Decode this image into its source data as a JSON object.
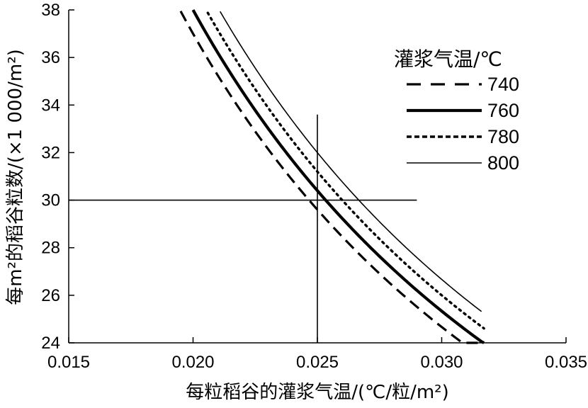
{
  "chart_data": {
    "type": "line",
    "xlabel": "每粒稻谷的灌浆气温/(℃/粒/m²)",
    "ylabel": "每m²的稻谷粒数/(×1 000/m²)",
    "xlim": [
      0.015,
      0.035
    ],
    "ylim": [
      24,
      38
    ],
    "x_ticks": [
      "0.015",
      "0.020",
      "0.025",
      "0.030",
      "0.035"
    ],
    "y_ticks": [
      "24",
      "26",
      "28",
      "30",
      "32",
      "34",
      "36",
      "38"
    ],
    "legend_title": "灌浆气温/℃",
    "legend_position": "right",
    "grid": false,
    "series": [
      {
        "name": "740",
        "style": "long-dash",
        "constant": 740,
        "x_range": [
          0.0195,
          0.0316
        ]
      },
      {
        "name": "760",
        "style": "thick-solid",
        "constant": 760,
        "x_range": [
          0.02,
          0.0317
        ]
      },
      {
        "name": "780",
        "style": "dotted",
        "constant": 780,
        "x_range": [
          0.0205,
          0.0317
        ]
      },
      {
        "name": "800",
        "style": "thin-solid",
        "constant": 800,
        "x_range": [
          0.021,
          0.0316
        ]
      }
    ],
    "reference_lines": [
      {
        "orientation": "vertical",
        "x": 0.025,
        "y_range": [
          24,
          33.6
        ]
      },
      {
        "orientation": "horizontal",
        "y": 30,
        "x_range": [
          0.015,
          0.029
        ]
      }
    ]
  }
}
